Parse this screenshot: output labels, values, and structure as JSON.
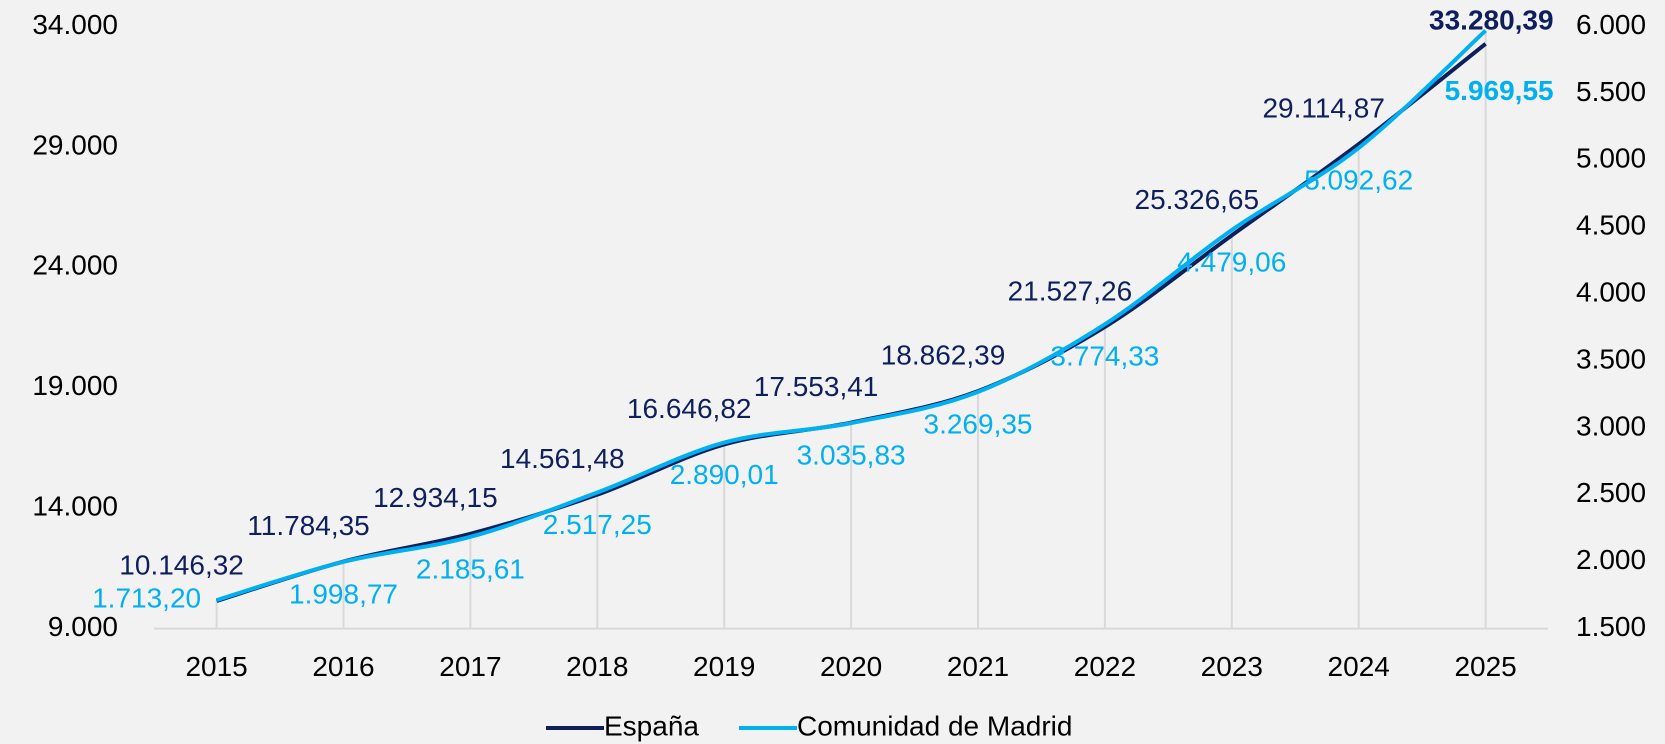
{
  "chart_data": {
    "type": "line",
    "categories": [
      "2015",
      "2016",
      "2017",
      "2018",
      "2019",
      "2020",
      "2021",
      "2022",
      "2023",
      "2024",
      "2025"
    ],
    "series": [
      {
        "name": "España",
        "color": "#0f1f5c",
        "axis": "y",
        "values": [
          10146.32,
          11784.35,
          12934.15,
          14561.48,
          16646.82,
          17553.41,
          18862.39,
          21527.26,
          25326.65,
          29114.87,
          33280.39
        ],
        "value_labels": [
          "10.146,32",
          "11.784,35",
          "12.934,15",
          "14.561,48",
          "16.646,82",
          "17.553,41",
          "18.862,39",
          "21.527,26",
          "25.326,65",
          "29.114,87",
          "33.280,39"
        ]
      },
      {
        "name": "Comunidad de Madrid",
        "color": "#00b0f0",
        "axis": "y2",
        "values": [
          1713.2,
          1998.77,
          2185.61,
          2517.25,
          2890.01,
          3035.83,
          3269.35,
          3774.33,
          4479.06,
          5092.62,
          5969.55
        ],
        "value_labels": [
          "1.713,20",
          "1.998,77",
          "2.185,61",
          "2.517,25",
          "2.890,01",
          "3.035,83",
          "3.269,35",
          "3.774,33",
          "4.479,06",
          "5.092,62",
          "5.969,55"
        ]
      }
    ],
    "ylim": [
      9000,
      34000
    ],
    "yticks": [
      {
        "value": 9000,
        "label": "9.000"
      },
      {
        "value": 14000,
        "label": "14.000"
      },
      {
        "value": 19000,
        "label": "19.000"
      },
      {
        "value": 24000,
        "label": "24.000"
      },
      {
        "value": 29000,
        "label": "29.000"
      },
      {
        "value": 34000,
        "label": "34.000"
      }
    ],
    "y2lim": [
      1500,
      6000
    ],
    "y2ticks": [
      {
        "value": 1500,
        "label": "1.500"
      },
      {
        "value": 2000,
        "label": "2.000"
      },
      {
        "value": 2500,
        "label": "2.500"
      },
      {
        "value": 3000,
        "label": "3.000"
      },
      {
        "value": 3500,
        "label": "3.500"
      },
      {
        "value": 4000,
        "label": "4.000"
      },
      {
        "value": 4500,
        "label": "4.500"
      },
      {
        "value": 5000,
        "label": "5.000"
      },
      {
        "value": 5500,
        "label": "5.500"
      },
      {
        "value": 6000,
        "label": "6.000"
      }
    ],
    "legend": "bottom"
  }
}
